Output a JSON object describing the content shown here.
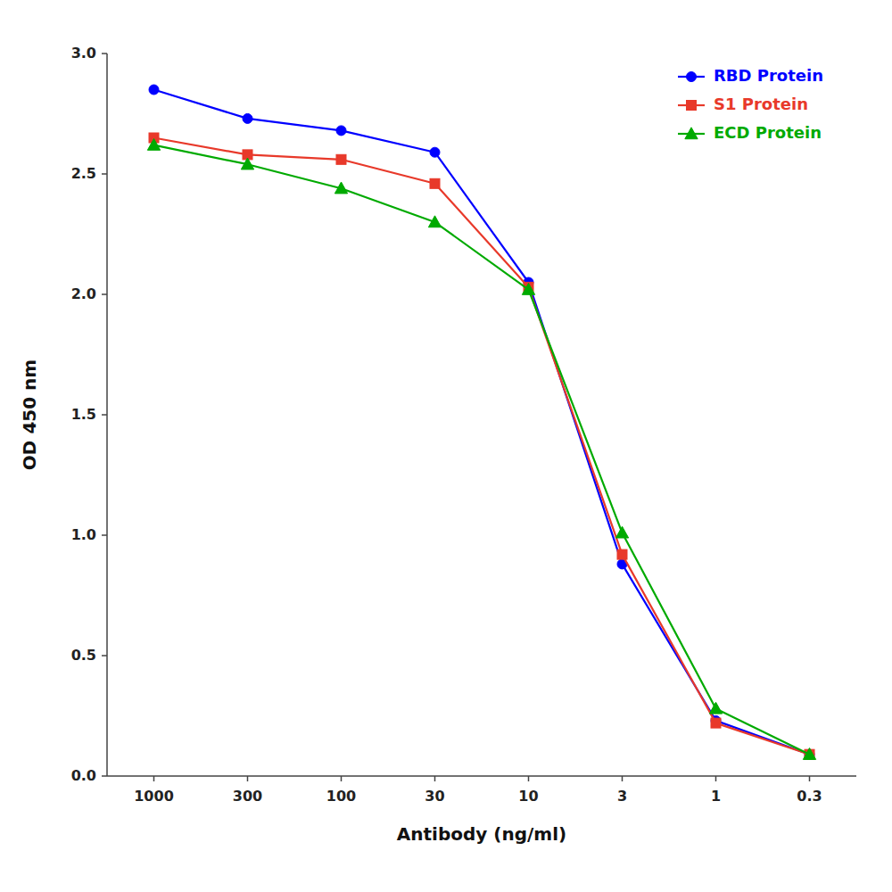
{
  "chart_data": {
    "type": "line",
    "x_label": "Antibody (ng/ml)",
    "y_label": "OD 450 nm",
    "categories": [
      "1000",
      "300",
      "100",
      "30",
      "10",
      "3",
      "1",
      "0.3"
    ],
    "series": [
      {
        "name": "RBD Protein",
        "color": "#0000ff",
        "marker": "circle",
        "line_style": "solid",
        "values": [
          2.85,
          2.73,
          2.68,
          2.59,
          2.05,
          0.88,
          0.23,
          0.09
        ]
      },
      {
        "name": "S1 Protein",
        "color": "#e8392a",
        "marker": "square",
        "line_style": "solid",
        "values": [
          2.65,
          2.58,
          2.56,
          2.46,
          2.03,
          0.92,
          0.22,
          0.09
        ]
      },
      {
        "name": "ECD Protein",
        "color": "#00aa00",
        "marker": "triangle",
        "line_style": "solid",
        "values": [
          2.62,
          2.54,
          2.44,
          2.3,
          2.02,
          1.01,
          0.28,
          0.09
        ]
      }
    ],
    "ylim": [
      0.0,
      3.0
    ],
    "yticks": [
      {
        "value": 0.0,
        "label": "0.0"
      },
      0.5,
      {
        "value": 1.0,
        "label": "1.0"
      },
      1.5,
      {
        "value": 2.0,
        "label": "2.0"
      },
      2.5,
      {
        "value": 3.0,
        "label": "3.0"
      }
    ],
    "grid": false,
    "legend": "upper right",
    "background_color": "#ffffff"
  }
}
